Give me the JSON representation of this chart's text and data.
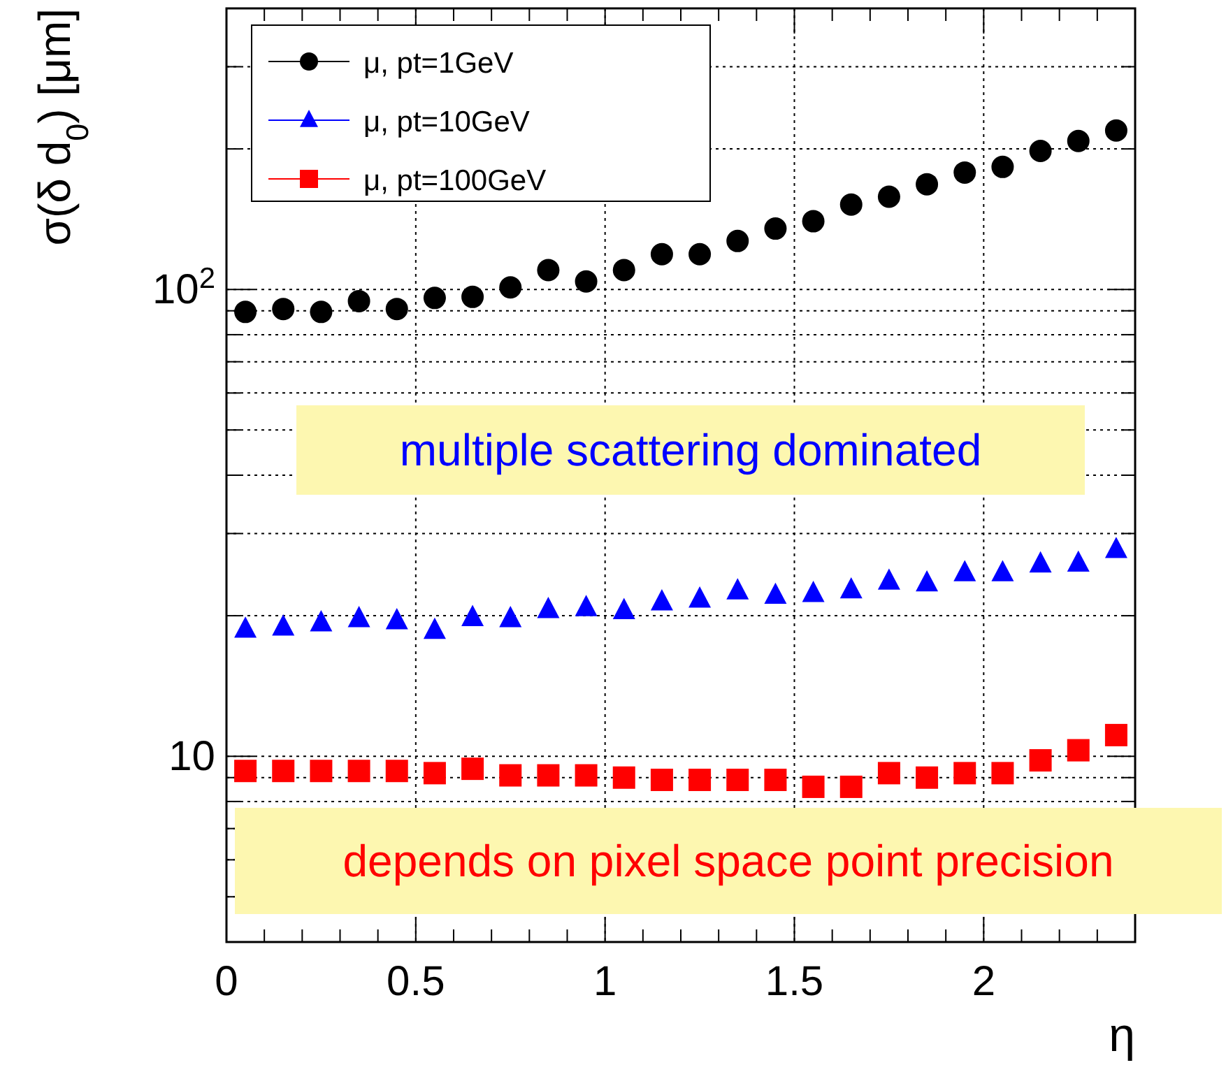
{
  "chart_data": {
    "type": "scatter",
    "xlabel": "η",
    "ylabel": "σ(δ d$_{0}$) [μm]",
    "x": [
      0.05,
      0.15,
      0.25,
      0.35,
      0.45,
      0.55,
      0.65,
      0.75,
      0.85,
      0.95,
      1.05,
      1.15,
      1.25,
      1.35,
      1.45,
      1.55,
      1.65,
      1.75,
      1.85,
      1.95,
      2.05,
      2.15,
      2.25,
      2.35
    ],
    "series": [
      {
        "name": "μ, pt=1GeV",
        "color": "#000000",
        "marker": "circle",
        "values": [
          89.5,
          90.8,
          89.5,
          94.4,
          90.8,
          95.9,
          96.4,
          101,
          110,
          104,
          110,
          119,
          119,
          127,
          135,
          140,
          152,
          158,
          168,
          178,
          183,
          198,
          208,
          219
        ]
      },
      {
        "name": "μ, pt=10GeV",
        "color": "#0000ff",
        "marker": "triangle",
        "values": [
          18.7,
          18.9,
          19.3,
          19.7,
          19.5,
          18.6,
          19.8,
          19.7,
          20.6,
          20.8,
          20.5,
          21.4,
          21.7,
          22.6,
          22.1,
          22.3,
          22.7,
          23.7,
          23.5,
          24.7,
          24.7,
          25.8,
          25.9,
          27.7
        ]
      },
      {
        "name": "μ, pt=100GeV",
        "color": "#ff0000",
        "marker": "square",
        "values": [
          9.3,
          9.3,
          9.3,
          9.3,
          9.3,
          9.2,
          9.4,
          9.1,
          9.1,
          9.1,
          9.0,
          8.9,
          8.9,
          8.9,
          8.9,
          8.6,
          8.6,
          9.2,
          9.0,
          9.2,
          9.2,
          9.8,
          10.3,
          11.1
        ]
      }
    ],
    "log": "y",
    "xlim": [
      0,
      2.4
    ],
    "ylim": [
      4,
      400
    ],
    "xticks": [
      0,
      {
        "value": 0.1,
        "label": null
      },
      {
        "value": 0.2,
        "label": null
      },
      {
        "value": 0.3,
        "label": null
      },
      {
        "value": 0.4,
        "label": null
      },
      0.5,
      {
        "value": 0.6,
        "label": null
      },
      {
        "value": 0.7,
        "label": null
      },
      {
        "value": 0.8,
        "label": null
      },
      {
        "value": 0.9,
        "label": null
      },
      1,
      {
        "value": 1.1,
        "label": null
      },
      {
        "value": 1.2,
        "label": null
      },
      {
        "value": 1.3,
        "label": null
      },
      {
        "value": 1.4,
        "label": null
      },
      1.5,
      {
        "value": 1.6,
        "label": null
      },
      {
        "value": 1.7,
        "label": null
      },
      {
        "value": 1.8,
        "label": null
      },
      {
        "value": 1.9,
        "label": null
      },
      2,
      {
        "value": 2.1,
        "label": null
      },
      {
        "value": 2.2,
        "label": null
      },
      {
        "value": 2.3,
        "label": null
      }
    ],
    "yticks": [
      {
        "value": 5,
        "label": null
      },
      {
        "value": 6,
        "label": null
      },
      {
        "value": 7,
        "label": null
      },
      {
        "value": 8,
        "label": null
      },
      {
        "value": 9,
        "label": null
      },
      10,
      {
        "value": 20,
        "label": null
      },
      {
        "value": 30,
        "label": null
      },
      {
        "value": 40,
        "label": null
      },
      {
        "value": 50,
        "label": null
      },
      {
        "value": 60,
        "label": null
      },
      {
        "value": 70,
        "label": null
      },
      {
        "value": 80,
        "label": null
      },
      {
        "value": 90,
        "label": null
      },
      {
        "value": 100,
        "label": "10$^{2}$"
      },
      {
        "value": 200,
        "label": null
      },
      {
        "value": 300,
        "label": null
      }
    ],
    "grid": true,
    "legend": "top left",
    "annotations": [
      "multiple scattering dominated",
      "depends on pixel space point precision"
    ]
  }
}
